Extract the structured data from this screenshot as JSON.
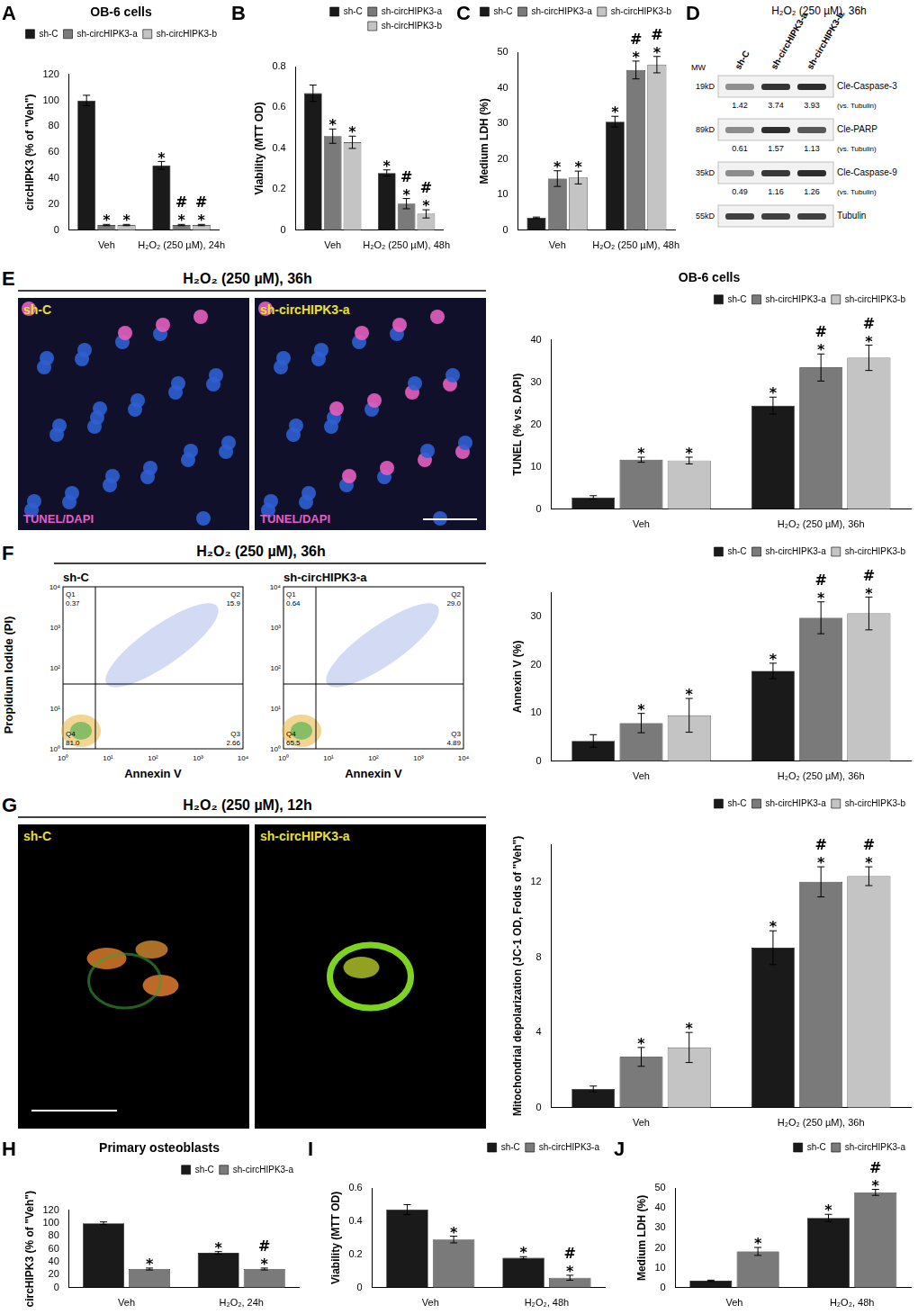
{
  "chart_data": [
    {
      "panel": "A",
      "type": "bar",
      "title": "OB-6 cells",
      "ylabel": "circHIPK3 (% of \"Veh\")",
      "categories": [
        "Veh",
        "H₂O₂ (250 µM), 24h"
      ],
      "series": [
        {
          "name": "sh-C",
          "color": "#1a1a1a",
          "values": [
            100,
            50
          ],
          "errors": [
            4,
            3
          ],
          "marks": [
            null,
            [
              "*"
            ]
          ]
        },
        {
          "name": "sh-circHIPK3-a",
          "color": "#7a7a7a",
          "values": [
            4,
            4
          ],
          "errors": [
            0.5,
            0.5
          ],
          "marks": [
            [
              "*"
            ],
            [
              "#",
              "*"
            ]
          ]
        },
        {
          "name": "sh-circHIPK3-b",
          "color": "#c4c4c4",
          "values": [
            4,
            4
          ],
          "errors": [
            0.5,
            0.5
          ],
          "marks": [
            [
              "*"
            ],
            [
              "#",
              "*"
            ]
          ]
        }
      ],
      "ylim": [
        0,
        120
      ],
      "yticks": [
        0,
        20,
        40,
        60,
        80,
        100,
        120
      ],
      "grid": false,
      "legend": "top right"
    },
    {
      "panel": "B",
      "type": "bar",
      "ylabel": "Viability (MTT OD)",
      "categories": [
        "Veh",
        "H₂O₂ (250 µM), 48h"
      ],
      "series": [
        {
          "name": "sh-C",
          "color": "#1a1a1a",
          "values": [
            0.67,
            0.28
          ],
          "errors": [
            0.04,
            0.015
          ],
          "marks": [
            null,
            [
              "*"
            ]
          ]
        },
        {
          "name": "sh-circHIPK3-a",
          "color": "#7a7a7a",
          "values": [
            0.46,
            0.13
          ],
          "errors": [
            0.035,
            0.025
          ],
          "marks": [
            [
              "*"
            ],
            [
              "#",
              "*"
            ]
          ]
        },
        {
          "name": "sh-circHIPK3-b",
          "color": "#c4c4c4",
          "values": [
            0.43,
            0.08
          ],
          "errors": [
            0.03,
            0.02
          ],
          "marks": [
            [
              "*"
            ],
            [
              "#",
              "*"
            ]
          ]
        }
      ],
      "ylim": [
        0,
        0.8
      ],
      "yticks": [
        0,
        0.2,
        0.4,
        0.6,
        0.8
      ],
      "grid": false,
      "legend": "top right"
    },
    {
      "panel": "C",
      "type": "bar",
      "ylabel": "Medium LDH (%)",
      "categories": [
        "Veh",
        "H₂O₂ (250 µM), 48h"
      ],
      "series": [
        {
          "name": "sh-C",
          "color": "#1a1a1a",
          "values": [
            3.5,
            30.5
          ],
          "errors": [
            0.2,
            1.5
          ],
          "marks": [
            null,
            [
              "*"
            ]
          ]
        },
        {
          "name": "sh-circHIPK3-a",
          "color": "#7a7a7a",
          "values": [
            14.5,
            45
          ],
          "errors": [
            2.2,
            2.5
          ],
          "marks": [
            [
              "*"
            ],
            [
              "#",
              "*"
            ]
          ]
        },
        {
          "name": "sh-circHIPK3-b",
          "color": "#c4c4c4",
          "values": [
            14.8,
            46.5
          ],
          "errors": [
            1.8,
            2.3
          ],
          "marks": [
            [
              "*"
            ],
            [
              "#",
              "*"
            ]
          ]
        }
      ],
      "ylim": [
        0,
        50
      ],
      "yticks": [
        0,
        10,
        20,
        30,
        40,
        50
      ],
      "grid": false,
      "legend": "top right"
    },
    {
      "type": "bar",
      "title": "OB-6 cells",
      "ylabel": "TUNEL (% vs. DAPI)",
      "categories": [
        "Veh",
        "H₂O₂ (250 µM), 36h"
      ],
      "series": [
        {
          "name": "sh-C",
          "color": "#1a1a1a",
          "values": [
            2.8,
            24.5
          ],
          "errors": [
            0.4,
            2
          ],
          "marks": [
            null,
            [
              "*"
            ]
          ]
        },
        {
          "name": "sh-circHIPK3-a",
          "color": "#7a7a7a",
          "values": [
            11.7,
            33.5
          ],
          "errors": [
            0.6,
            3.2
          ],
          "marks": [
            [
              "*"
            ],
            [
              "#",
              "*"
            ]
          ]
        },
        {
          "name": "sh-circHIPK3-b",
          "color": "#c4c4c4",
          "values": [
            11.5,
            35.8
          ],
          "errors": [
            0.8,
            3
          ],
          "marks": [
            [
              "*"
            ],
            [
              "#",
              "*"
            ]
          ]
        }
      ],
      "ylim": [
        0,
        40
      ],
      "yticks": [
        0,
        10,
        20,
        30,
        40
      ],
      "grid": false,
      "legend": "top right"
    },
    {
      "type": "bar",
      "ylabel": "Annexin V (%)",
      "categories": [
        "Veh",
        "H₂O₂ (250 µM), 36h"
      ],
      "series": [
        {
          "name": "sh-C",
          "color": "#1a1a1a",
          "values": [
            4.2,
            18.7
          ],
          "errors": [
            1.3,
            1.6
          ],
          "marks": [
            null,
            [
              "*"
            ]
          ]
        },
        {
          "name": "sh-circHIPK3-a",
          "color": "#7a7a7a",
          "values": [
            7.9,
            29.7
          ],
          "errors": [
            2,
            3.3
          ],
          "marks": [
            [
              "*"
            ],
            [
              "#",
              "*"
            ]
          ]
        },
        {
          "name": "sh-circHIPK3-b",
          "color": "#c4c4c4",
          "values": [
            9.5,
            30.6
          ],
          "errors": [
            3.5,
            3.4
          ],
          "marks": [
            [
              "*"
            ],
            [
              "#",
              "*"
            ]
          ]
        }
      ],
      "ylim": [
        0,
        35
      ],
      "yticks": [
        0,
        10,
        20,
        30
      ],
      "grid": false,
      "legend": "top right"
    },
    {
      "type": "bar",
      "ylabel": "Mitochondrial depolarization (JC-1 OD, Folds of \"Veh\")",
      "categories": [
        "Veh",
        "H₂O₂ (250 µM), 36h"
      ],
      "series": [
        {
          "name": "sh-C",
          "color": "#1a1a1a",
          "values": [
            1,
            8.5
          ],
          "errors": [
            0.15,
            0.9
          ],
          "marks": [
            null,
            [
              "*"
            ]
          ]
        },
        {
          "name": "sh-circHIPK3-a",
          "color": "#7a7a7a",
          "values": [
            2.7,
            12
          ],
          "errors": [
            0.5,
            0.8
          ],
          "marks": [
            [
              "*"
            ],
            [
              "#",
              "*"
            ]
          ]
        },
        {
          "name": "sh-circHIPK3-b",
          "color": "#c4c4c4",
          "values": [
            3.2,
            12.3
          ],
          "errors": [
            0.8,
            0.5
          ],
          "marks": [
            [
              "*"
            ],
            [
              "#",
              "*"
            ]
          ]
        }
      ],
      "ylim": [
        0,
        14
      ],
      "yticks": [
        0,
        4,
        8,
        12
      ],
      "grid": false,
      "legend": "top right"
    },
    {
      "panel": "H",
      "type": "bar",
      "title": "Primary osteoblasts",
      "ylabel": "circHIPK3 (% of \"Veh\")",
      "categories": [
        "Veh",
        "H₂O₂, 24h"
      ],
      "series": [
        {
          "name": "sh-C",
          "color": "#1a1a1a",
          "values": [
            100,
            54
          ],
          "errors": [
            2,
            2
          ],
          "marks": [
            null,
            [
              "*"
            ]
          ]
        },
        {
          "name": "sh-circHIPK3-a",
          "color": "#7a7a7a",
          "values": [
            29,
            29
          ],
          "errors": [
            1.5,
            1.5
          ],
          "marks": [
            [
              "*"
            ],
            [
              "#",
              "*"
            ]
          ]
        }
      ],
      "ylim": [
        0,
        120
      ],
      "yticks": [
        0,
        20,
        40,
        60,
        80,
        100,
        120
      ],
      "grid": false,
      "legend": "top right"
    },
    {
      "panel": "I",
      "type": "bar",
      "ylabel": "Viability (MTT OD)",
      "categories": [
        "Veh",
        "H₂O₂, 48h"
      ],
      "series": [
        {
          "name": "sh-C",
          "color": "#1a1a1a",
          "values": [
            0.47,
            0.18
          ],
          "errors": [
            0.03,
            0.007
          ],
          "marks": [
            null,
            [
              "*"
            ]
          ]
        },
        {
          "name": "sh-circHIPK3-a",
          "color": "#7a7a7a",
          "values": [
            0.29,
            0.06
          ],
          "errors": [
            0.02,
            0.015
          ],
          "marks": [
            [
              "*"
            ],
            [
              "#",
              "*"
            ]
          ]
        }
      ],
      "ylim": [
        0,
        0.6
      ],
      "yticks": [
        0,
        0.2,
        0.4,
        0.6
      ],
      "grid": false,
      "legend": "top right"
    },
    {
      "panel": "J",
      "type": "bar",
      "ylabel": "Medium LDH (%)",
      "categories": [
        "Veh",
        "H₂O₂, 48h"
      ],
      "series": [
        {
          "name": "sh-C",
          "color": "#1a1a1a",
          "values": [
            3.5,
            35
          ],
          "errors": [
            0.3,
            1.8
          ],
          "marks": [
            null,
            [
              "*"
            ]
          ]
        },
        {
          "name": "sh-circHIPK3-a",
          "color": "#7a7a7a",
          "values": [
            18.2,
            47.8
          ],
          "errors": [
            2,
            1.5
          ],
          "marks": [
            [
              "*"
            ],
            [
              "#",
              "*"
            ]
          ]
        }
      ],
      "ylim": [
        0,
        50
      ],
      "yticks": [
        0,
        10,
        20,
        30,
        40,
        50
      ],
      "grid": false,
      "legend": "top right"
    }
  ],
  "blot": {
    "panel": "D",
    "title": "H₂O₂ (250 µM), 36h",
    "mw_header": "MW",
    "lanes": [
      "sh-C",
      "sh-circHIPK3-a",
      "sh-circHIPK3-b"
    ],
    "rows": [
      {
        "mw": "19kD",
        "protein": "Cle-Caspase-3",
        "values": [
          1.42,
          3.74,
          3.93
        ],
        "normalizer": "(vs. Tubulin)"
      },
      {
        "mw": "89kD",
        "protein": "Cle-PARP",
        "values": [
          0.61,
          1.57,
          1.13
        ],
        "normalizer": "(vs. Tubulin)"
      },
      {
        "mw": "35kD",
        "protein": "Cle-Caspase-9",
        "values": [
          0.49,
          1.16,
          1.26
        ],
        "normalizer": "(vs. Tubulin)"
      },
      {
        "mw": "55kD",
        "protein": "Tubulin"
      }
    ]
  },
  "images": [
    {
      "panel": "E",
      "title": "H₂O₂ (250 µM), 36h",
      "labels": [
        "sh-C",
        "sh-circHIPK3-a"
      ],
      "stain": "TUNEL/DAPI"
    },
    {
      "panel": "G",
      "title": "H₂O₂ (250 µM), 12h",
      "labels": [
        "sh-C",
        "sh-circHIPK3-a"
      ]
    }
  ],
  "flow": {
    "panel": "F",
    "title": "H₂O₂ (250 µM), 36h",
    "xlabel": "Annexin V",
    "ylabel": "Propidium Iodide (PI)",
    "ticks": [
      "10⁰",
      "10¹",
      "10²",
      "10³",
      "10⁴"
    ],
    "plots": [
      {
        "label": "sh-C",
        "quadrants": {
          "Q1": "0.37",
          "Q2": "15.9",
          "Q3": "2.66",
          "Q4": "81.0"
        }
      },
      {
        "label": "sh-circHIPK3-a",
        "quadrants": {
          "Q1": "0.64",
          "Q2": "29.0",
          "Q3": "4.89",
          "Q4": "65.5"
        }
      }
    ]
  }
}
